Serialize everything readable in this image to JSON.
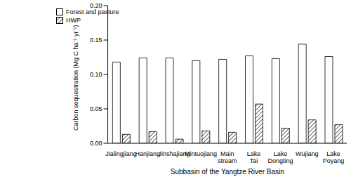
{
  "chart_data": {
    "type": "bar",
    "xlabel": "Subbasin of the Yangtze River Basin",
    "ylabel": "Carbon sequestration (Mg C ha⁻¹ yr⁻¹)",
    "categories": [
      "Jialingjiang",
      "Hanjiang",
      "Jinshajiang",
      "Mintuojiang",
      "Main stream",
      "Lake Tai",
      "Lake Dongting",
      "Wujiang",
      "Lake Poyang"
    ],
    "series": [
      {
        "name": "Forest and pasture",
        "color": "#ffffff",
        "values": [
          0.118,
          0.124,
          0.124,
          0.12,
          0.122,
          0.127,
          0.123,
          0.144,
          0.126
        ]
      },
      {
        "name": "HWP",
        "color": "#606060",
        "values": [
          0.013,
          0.017,
          0.006,
          0.018,
          0.016,
          0.057,
          0.022,
          0.034,
          0.027
        ]
      }
    ],
    "ylim": [
      0,
      0.2
    ],
    "yticks": [
      {
        "value": 0,
        "label": "0.00"
      },
      {
        "value": 0.05,
        "label": "0.05"
      },
      {
        "value": 0.1,
        "label": "0.10"
      },
      {
        "value": 0.15,
        "label": "0.15"
      },
      {
        "value": 0.2,
        "label": "0.20"
      }
    ],
    "grid": false,
    "legend": "upper left"
  }
}
